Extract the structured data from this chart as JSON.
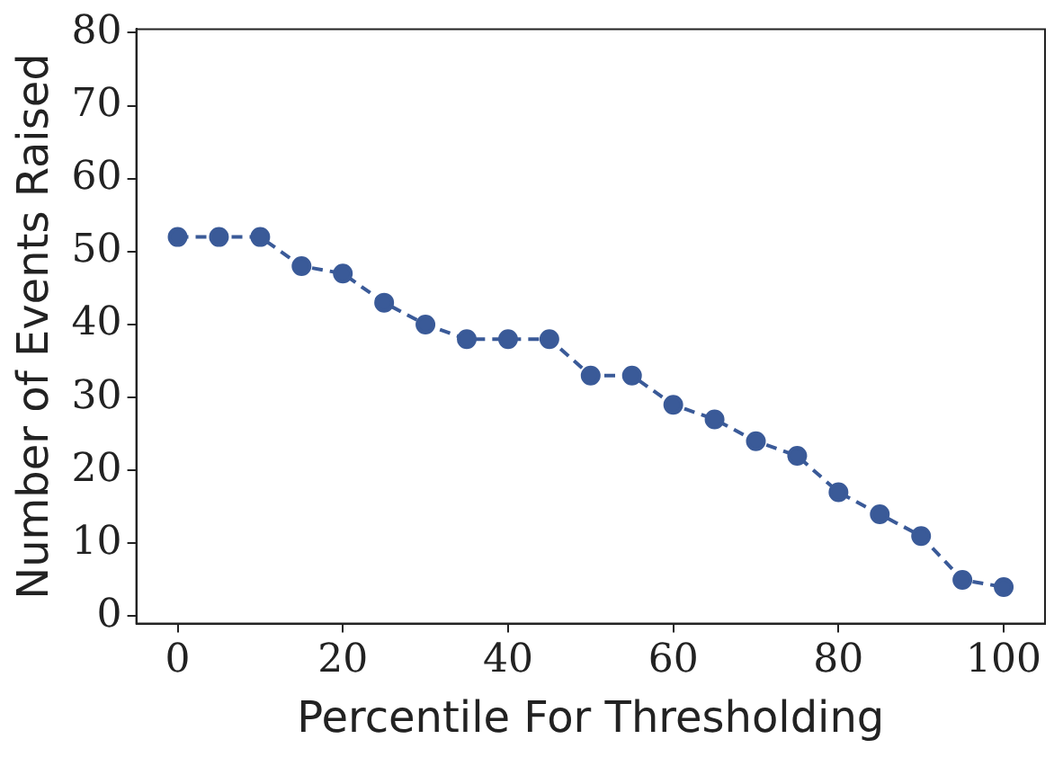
{
  "chart_data": {
    "type": "line",
    "xlabel": "Percentile For Thresholding",
    "ylabel": "Number of Events Raised",
    "x": [
      0,
      5,
      10,
      15,
      20,
      25,
      30,
      35,
      40,
      45,
      50,
      55,
      60,
      65,
      70,
      75,
      80,
      85,
      90,
      95,
      100
    ],
    "series": [
      {
        "color": "#3a5a98",
        "values": [
          52,
          52,
          52,
          48,
          47,
          43,
          40,
          38,
          38,
          38,
          33,
          33,
          29,
          27,
          24,
          22,
          17,
          14,
          11,
          5,
          4
        ]
      }
    ],
    "xlim": [
      -5,
      105
    ],
    "xticks": [
      0,
      20,
      40,
      60,
      80,
      100
    ],
    "ylim": [
      -1,
      80.5
    ],
    "yticks": [
      0,
      10,
      20,
      30,
      40,
      50,
      60,
      70,
      80
    ],
    "grid": false,
    "marker": "circle",
    "line_style": "dashed"
  }
}
